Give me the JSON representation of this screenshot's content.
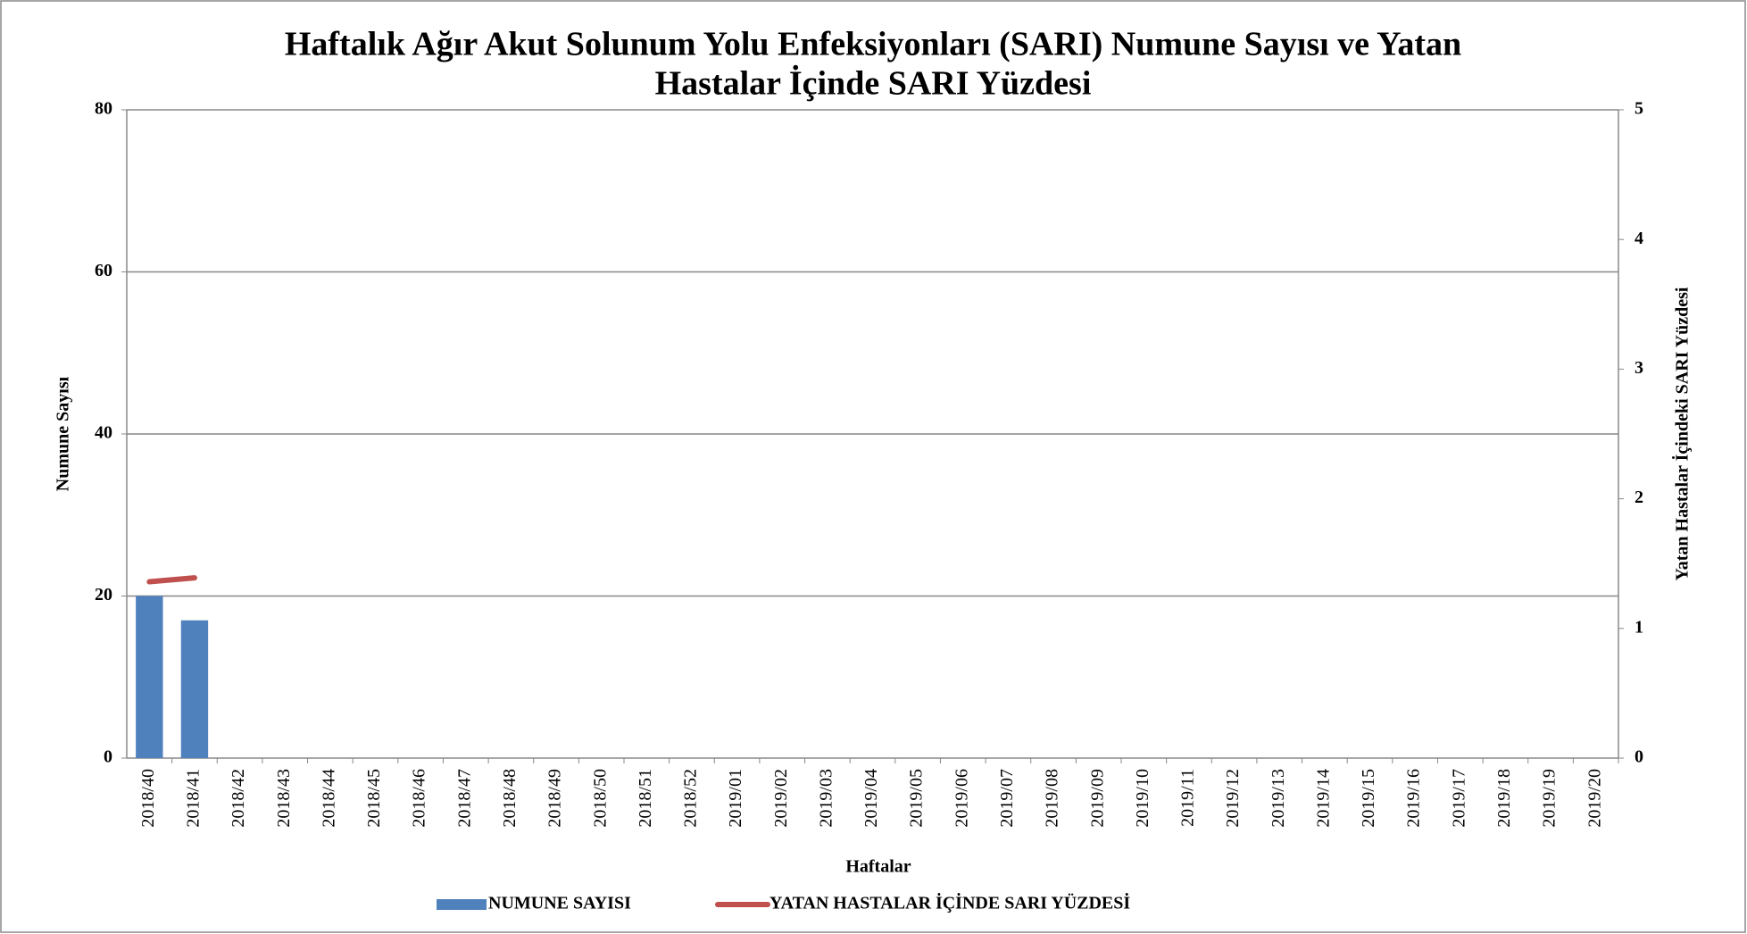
{
  "chart_data": {
    "type": "bar_line",
    "title": "Haftalık Ağır Akut Solunum Yolu Enfeksiyonları (SARI) Numune Sayısı ve Yatan",
    "subtitle": "Hastalar İçinde SARI Yüzdesi",
    "x_label": "Haftalar",
    "y_label": "Numune  Sayısı",
    "y2_label": "Yatan Hastalar İçindeki SARI  Yüzdesi",
    "categories": [
      "2018/40",
      "2018/41",
      "2018/42",
      "2018/43",
      "2018/44",
      "2018/45",
      "2018/46",
      "2018/47",
      "2018/48",
      "2018/49",
      "2018/50",
      "2018/51",
      "2018/52",
      "2019/01",
      "2019/02",
      "2019/03",
      "2019/04",
      "2019/05",
      "2019/06",
      "2019/07",
      "2019/08",
      "2019/09",
      "2019/10",
      "2019/11",
      "2019/12",
      "2019/13",
      "2019/14",
      "2019/15",
      "2019/16",
      "2019/17",
      "2019/18",
      "2019/19",
      "2019/20"
    ],
    "series": [
      {
        "name": "NUMUNE SAYISI",
        "type": "bar",
        "color": "#4f81bd",
        "values": [
          20,
          17,
          null,
          null,
          null,
          null,
          null,
          null,
          null,
          null,
          null,
          null,
          null,
          null,
          null,
          null,
          null,
          null,
          null,
          null,
          null,
          null,
          null,
          null,
          null,
          null,
          null,
          null,
          null,
          null,
          null,
          null,
          null
        ]
      },
      {
        "name": "YATAN HASTALAR İÇİNDE SARI  YÜZDESİ",
        "type": "line",
        "axis": "y2",
        "color": "#c0504d",
        "values": [
          1.36,
          1.39,
          null,
          null,
          null,
          null,
          null,
          null,
          null,
          null,
          null,
          null,
          null,
          null,
          null,
          null,
          null,
          null,
          null,
          null,
          null,
          null,
          null,
          null,
          null,
          null,
          null,
          null,
          null,
          null,
          null,
          null,
          null
        ]
      }
    ],
    "ylim": [
      0,
      80
    ],
    "yticks": [
      0,
      20,
      40,
      60,
      80
    ],
    "y2lim": [
      0,
      5
    ],
    "y2ticks": [
      0,
      1,
      2,
      3,
      4,
      5
    ],
    "grid": true,
    "legend": "bottom"
  }
}
